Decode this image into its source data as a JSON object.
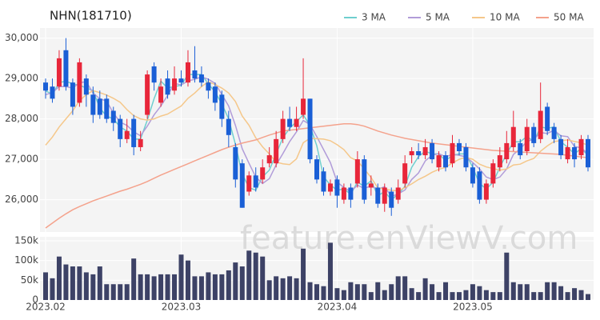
{
  "chart_data": {
    "type": "candlestick",
    "title": "NHN(181710)",
    "watermark": "feature.enViewV.com",
    "legend": "top-right",
    "grid": true,
    "up_color": "#e8263a",
    "down_color": "#1a5fd6",
    "volume_color": "#3d4266",
    "categories": [
      "2023.02",
      null,
      null,
      null,
      null,
      null,
      null,
      null,
      null,
      null,
      null,
      null,
      null,
      null,
      null,
      null,
      null,
      null,
      null,
      null,
      "2023.03",
      null,
      null,
      null,
      null,
      null,
      null,
      null,
      null,
      null,
      null,
      null,
      null,
      null,
      null,
      null,
      null,
      null,
      null,
      null,
      null,
      null,
      null,
      "2023.04",
      null,
      null,
      null,
      null,
      null,
      null,
      null,
      null,
      null,
      null,
      null,
      null,
      null,
      null,
      null,
      null,
      null,
      null,
      null,
      "2023.05",
      null,
      null,
      null,
      null,
      null,
      null,
      null,
      null,
      null,
      null,
      null,
      null,
      null,
      null,
      null,
      null,
      null
    ],
    "open": [
      28900,
      28800,
      28800,
      29700,
      28900,
      28400,
      29000,
      28600,
      28500,
      28500,
      28200,
      28000,
      27500,
      28000,
      27300,
      28100,
      29300,
      28400,
      29000,
      28700,
      29000,
      28900,
      29200,
      29100,
      28900,
      28800,
      28600,
      28000,
      27300,
      26900,
      26200,
      26600,
      26500,
      26900,
      26900,
      27500,
      28000,
      27800,
      28100,
      28500,
      27000,
      26700,
      26200,
      26500,
      26000,
      26300,
      26400,
      27000,
      26300,
      26300,
      25900,
      26200,
      26000,
      26400,
      27100,
      27200,
      27100,
      27400,
      26800,
      27100,
      26900,
      27400,
      27300,
      26800,
      26700,
      26000,
      26400,
      26800,
      27000,
      27300,
      27400,
      27200,
      27800,
      27500,
      28300,
      27800,
      27500,
      27000,
      27300,
      27100,
      27500
    ],
    "high": [
      29000,
      29000,
      29700,
      30000,
      29000,
      29500,
      29100,
      28800,
      28700,
      28600,
      28300,
      28100,
      28000,
      28100,
      27700,
      29200,
      29400,
      29000,
      29200,
      29300,
      29200,
      29700,
      29800,
      29300,
      29000,
      28900,
      28700,
      28200,
      27400,
      27000,
      26700,
      26800,
      27000,
      27300,
      27700,
      28200,
      28300,
      28300,
      29500,
      28500,
      27100,
      26800,
      26500,
      26600,
      26400,
      26400,
      27200,
      27100,
      26600,
      26400,
      26400,
      26300,
      26500,
      27100,
      27300,
      27400,
      27500,
      27500,
      27200,
      27200,
      27600,
      27500,
      27400,
      26900,
      26800,
      26500,
      27000,
      27300,
      27700,
      28200,
      27500,
      28000,
      27900,
      28900,
      28400,
      27900,
      27600,
      27500,
      27400,
      27600,
      27600
    ],
    "low": [
      28500,
      28400,
      28700,
      28700,
      28100,
      28300,
      28300,
      27900,
      28000,
      27900,
      27700,
      27300,
      27400,
      27100,
      27200,
      28000,
      28700,
      28300,
      28500,
      28600,
      28800,
      28800,
      28900,
      28800,
      28500,
      28200,
      27800,
      27300,
      26300,
      25800,
      26100,
      26200,
      26400,
      26800,
      26800,
      27400,
      27700,
      27700,
      28000,
      26900,
      26400,
      26100,
      26100,
      25800,
      25900,
      25800,
      26300,
      25900,
      26100,
      25800,
      25700,
      25600,
      25900,
      26300,
      26900,
      27000,
      27000,
      26900,
      26700,
      26700,
      26800,
      27100,
      26700,
      26300,
      25900,
      25900,
      26300,
      26700,
      26900,
      27200,
      27000,
      27100,
      27300,
      27400,
      27600,
      27400,
      27000,
      26900,
      26800,
      27000,
      26700
    ],
    "close": [
      28700,
      28500,
      29500,
      28800,
      28300,
      29400,
      28600,
      28100,
      28100,
      28000,
      27900,
      27500,
      27700,
      27300,
      27500,
      29100,
      28900,
      28800,
      28600,
      29000,
      28900,
      29400,
      29000,
      28900,
      28700,
      28400,
      28000,
      27600,
      26500,
      25800,
      26600,
      26300,
      26800,
      27100,
      27500,
      28000,
      27800,
      28000,
      28500,
      27000,
      26500,
      26200,
      26400,
      26100,
      26300,
      26000,
      27000,
      26000,
      26400,
      25900,
      26300,
      25800,
      26300,
      26900,
      27200,
      27100,
      27300,
      27000,
      27100,
      26800,
      27400,
      27200,
      26800,
      26400,
      26000,
      26400,
      26900,
      27100,
      27400,
      27800,
      27100,
      27800,
      27400,
      28200,
      27700,
      27500,
      27100,
      27300,
      27000,
      27500,
      26800
    ],
    "volume": [
      70000,
      55000,
      110000,
      90000,
      85000,
      85000,
      70000,
      65000,
      85000,
      40000,
      40000,
      40000,
      40000,
      105000,
      65000,
      65000,
      60000,
      65000,
      65000,
      65000,
      115000,
      100000,
      60000,
      60000,
      70000,
      65000,
      65000,
      75000,
      95000,
      85000,
      125000,
      120000,
      110000,
      50000,
      60000,
      55000,
      60000,
      55000,
      130000,
      45000,
      40000,
      35000,
      145000,
      30000,
      25000,
      45000,
      40000,
      40000,
      20000,
      45000,
      25000,
      40000,
      60000,
      60000,
      30000,
      20000,
      55000,
      40000,
      20000,
      45000,
      20000,
      20000,
      25000,
      40000,
      35000,
      25000,
      20000,
      20000,
      120000,
      45000,
      40000,
      40000,
      20000,
      20000,
      45000,
      45000,
      35000,
      20000,
      30000,
      25000,
      15000
    ],
    "series": [
      {
        "name": "3 MA",
        "color": "#6fcfcf",
        "values": [
          28700,
          28600,
          28900,
          28933,
          28867,
          28833,
          28767,
          28700,
          28267,
          28067,
          28000,
          27800,
          27700,
          27500,
          27500,
          27967,
          28500,
          28933,
          28767,
          28800,
          28833,
          29100,
          29100,
          29100,
          28867,
          28667,
          28367,
          28000,
          27367,
          26633,
          26300,
          26233,
          26567,
          26733,
          27133,
          27533,
          27767,
          27933,
          28100,
          27833,
          27333,
          26567,
          26367,
          26233,
          26267,
          26133,
          26433,
          26333,
          26467,
          26100,
          26200,
          26000,
          26133,
          26333,
          26800,
          27067,
          27200,
          27133,
          27133,
          26967,
          27100,
          27133,
          27133,
          26800,
          26400,
          26267,
          26433,
          26800,
          27133,
          27433,
          27433,
          27567,
          27433,
          27800,
          27767,
          27800,
          27433,
          27300,
          27133,
          27267,
          27100
        ]
      },
      {
        "name": "5 MA",
        "color": "#b19cd9",
        "values": [
          28600,
          28650,
          28800,
          28800,
          28760,
          28900,
          28920,
          28640,
          28500,
          28440,
          28140,
          27920,
          27840,
          27680,
          27580,
          27820,
          28100,
          28320,
          28580,
          28880,
          28840,
          28940,
          28980,
          29040,
          28980,
          28880,
          28600,
          28320,
          27840,
          27260,
          26900,
          26560,
          26400,
          26520,
          26860,
          27140,
          27440,
          27680,
          27960,
          27860,
          27560,
          27240,
          26920,
          26440,
          26300,
          26200,
          26360,
          26280,
          26340,
          26260,
          26320,
          26080,
          26140,
          26240,
          26500,
          26660,
          26960,
          27100,
          27140,
          27060,
          27120,
          27100,
          27060,
          26920,
          26760,
          26560,
          26500,
          26560,
          26760,
          27120,
          27260,
          27440,
          27500,
          27660,
          27640,
          27720,
          27580,
          27560,
          27320,
          27280,
          27140
        ]
      },
      {
        "name": "10 MA",
        "color": "#f5c78a",
        "values": [
          27350,
          27550,
          27800,
          28000,
          28200,
          28450,
          28600,
          28700,
          28650,
          28590,
          28510,
          28410,
          28230,
          28080,
          28000,
          27970,
          28000,
          28070,
          28120,
          28220,
          28320,
          28510,
          28640,
          28800,
          28920,
          28850,
          28760,
          28640,
          28430,
          28070,
          27840,
          27530,
          27310,
          27130,
          26930,
          26890,
          26870,
          27010,
          27410,
          27520,
          27510,
          27500,
          27460,
          27360,
          27240,
          27040,
          26960,
          26760,
          26550,
          26290,
          26270,
          26230,
          26220,
          26300,
          26390,
          26500,
          26580,
          26680,
          26750,
          26800,
          26910,
          27000,
          27050,
          27000,
          26880,
          26810,
          26770,
          26730,
          26760,
          26860,
          26880,
          26960,
          27020,
          27200,
          27330,
          27440,
          27460,
          27480,
          27440,
          27410,
          27350
        ]
      },
      {
        "name": "50 MA",
        "color": "#f4a28c",
        "values": [
          25300,
          25420,
          25540,
          25650,
          25750,
          25830,
          25900,
          25970,
          26030,
          26090,
          26150,
          26210,
          26260,
          26320,
          26380,
          26450,
          26530,
          26610,
          26680,
          26750,
          26820,
          26890,
          26960,
          27030,
          27100,
          27170,
          27240,
          27300,
          27350,
          27400,
          27440,
          27480,
          27540,
          27600,
          27650,
          27700,
          27720,
          27740,
          27760,
          27780,
          27800,
          27820,
          27840,
          27860,
          27880,
          27880,
          27860,
          27820,
          27760,
          27700,
          27650,
          27600,
          27560,
          27520,
          27490,
          27460,
          27430,
          27400,
          27380,
          27360,
          27340,
          27320,
          27300,
          27280,
          27260,
          27240,
          27220,
          27210,
          27200,
          27190,
          27180,
          27170,
          27160,
          27150,
          27140,
          27130,
          27120,
          27100,
          27080,
          27060,
          27040
        ]
      }
    ],
    "ylim": [
      25200,
      30250
    ],
    "yticks": [
      {
        "value": 26000,
        "label": "26,000"
      },
      {
        "value": 27000,
        "label": "27,000"
      },
      {
        "value": 28000,
        "label": "28,000"
      },
      {
        "value": 29000,
        "label": "29,000"
      },
      {
        "value": 30000,
        "label": "30,000"
      }
    ],
    "volume_ylim": [
      0,
      160000
    ],
    "volume_yticks": [
      0,
      {
        "value": 50000,
        "label": "50k"
      },
      {
        "value": 100000,
        "label": "100k"
      },
      {
        "value": 150000,
        "label": "150k"
      }
    ]
  }
}
